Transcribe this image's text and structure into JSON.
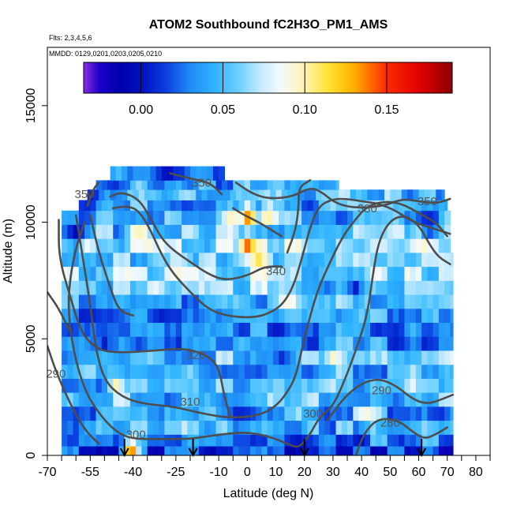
{
  "chart_data": {
    "type": "heatmap",
    "title": "ATOM2 Southbound fC2H3O_PM1_AMS",
    "subtitle_flights": "Flts: 2,3,4,5,6",
    "subtitle_dates": "MMDD: 0129,0201,0203,0205,0210",
    "xlabel": "Latitude (deg N)",
    "ylabel": "Altitude (m)",
    "xlim": [
      -70,
      85
    ],
    "ylim": [
      0,
      17500
    ],
    "x_ticks": [
      -70,
      -55,
      -40,
      -25,
      -10,
      0,
      10,
      20,
      30,
      40,
      50,
      60,
      70,
      80
    ],
    "x_minor_ticks": [
      -65,
      -60,
      -50,
      -45,
      -35,
      -30,
      -20,
      -15,
      -5,
      5,
      15,
      25,
      35,
      45,
      55,
      65,
      75,
      85
    ],
    "y_ticks": [
      0,
      5000,
      10000,
      15000
    ],
    "colorbar": {
      "min": -0.035,
      "max": 0.19,
      "ticks": [
        0.0,
        0.05,
        0.1,
        0.15
      ],
      "tick_labels": [
        "0.00",
        "0.05",
        "0.10",
        "0.15"
      ],
      "stops": [
        {
          "v": -0.035,
          "c": "#8a2be2"
        },
        {
          "v": -0.025,
          "c": "#1a00c8"
        },
        {
          "v": -0.012,
          "c": "#0000aa"
        },
        {
          "v": 0.0,
          "c": "#0010c0"
        },
        {
          "v": 0.015,
          "c": "#0a3ee0"
        },
        {
          "v": 0.03,
          "c": "#1f8cf5"
        },
        {
          "v": 0.045,
          "c": "#2fb4ff"
        },
        {
          "v": 0.06,
          "c": "#6fd0ff"
        },
        {
          "v": 0.072,
          "c": "#bfe8ff"
        },
        {
          "v": 0.085,
          "c": "#f4faff"
        },
        {
          "v": 0.1,
          "c": "#fff4b0"
        },
        {
          "v": 0.115,
          "c": "#ffe030"
        },
        {
          "v": 0.13,
          "c": "#ffb000"
        },
        {
          "v": 0.15,
          "c": "#ff2a00"
        },
        {
          "v": 0.17,
          "c": "#e00000"
        },
        {
          "v": 0.19,
          "c": "#8b0000"
        }
      ]
    },
    "contour_labels": [
      {
        "text": "350",
        "lat": -16,
        "alt": 11700
      },
      {
        "text": "350",
        "lat": -57,
        "alt": 11200
      },
      {
        "text": "350",
        "lat": 63,
        "alt": 10900
      },
      {
        "text": "330",
        "lat": 42,
        "alt": 10600
      },
      {
        "text": "340",
        "lat": 10,
        "alt": 7900
      },
      {
        "text": "320",
        "lat": -18,
        "alt": 4300
      },
      {
        "text": "310",
        "lat": -20,
        "alt": 2300
      },
      {
        "text": "300",
        "lat": -39,
        "alt": 900
      },
      {
        "text": "300",
        "lat": 23,
        "alt": 1800
      },
      {
        "text": "290",
        "lat": -67,
        "alt": 3500
      },
      {
        "text": "290",
        "lat": 47,
        "alt": 2800
      },
      {
        "text": "280",
        "lat": 50,
        "alt": 1400
      }
    ],
    "flight_markers_lat": [
      -43,
      -19,
      20,
      61
    ],
    "contour_lines": [
      {
        "level": 290,
        "points": [
          [
            -70,
            4700
          ],
          [
            -67,
            3600
          ],
          [
            -62,
            2200
          ],
          [
            -57,
            1100
          ],
          [
            -52,
            500
          ]
        ]
      },
      {
        "level": 290,
        "points": [
          [
            28,
            1500
          ],
          [
            34,
            2500
          ],
          [
            40,
            3100
          ],
          [
            46,
            3300
          ],
          [
            52,
            3000
          ],
          [
            58,
            2400
          ],
          [
            63,
            2200
          ],
          [
            68,
            2400
          ],
          [
            72,
            2600
          ]
        ]
      },
      {
        "level": 280,
        "points": [
          [
            38,
            0
          ],
          [
            41,
            1000
          ],
          [
            46,
            1600
          ],
          [
            53,
            1500
          ],
          [
            58,
            1000
          ],
          [
            62,
            700
          ],
          [
            66,
            900
          ],
          [
            70,
            1200
          ]
        ]
      },
      {
        "level": 300,
        "points": [
          [
            -57,
            10000
          ],
          [
            -61,
            8500
          ],
          [
            -63,
            6500
          ],
          [
            -61,
            4500
          ],
          [
            -57,
            2800
          ],
          [
            -52,
            1800
          ],
          [
            -46,
            1000
          ],
          [
            -40,
            700
          ],
          [
            -30,
            700
          ],
          [
            -20,
            700
          ],
          [
            -10,
            900
          ],
          [
            0,
            1000
          ],
          [
            8,
            800
          ],
          [
            14,
            500
          ],
          [
            18,
            300
          ],
          [
            22,
            900
          ],
          [
            25,
            1600
          ],
          [
            30,
            2100
          ],
          [
            34,
            3200
          ],
          [
            38,
            4500
          ],
          [
            42,
            6000
          ],
          [
            44,
            7800
          ],
          [
            46,
            9200
          ],
          [
            50,
            10100
          ],
          [
            55,
            10300
          ],
          [
            60,
            9900
          ],
          [
            64,
            9000
          ],
          [
            67,
            8500
          ],
          [
            71,
            8200
          ]
        ]
      },
      {
        "level": 310,
        "points": [
          [
            -60,
            10300
          ],
          [
            -58,
            8800
          ],
          [
            -55,
            6500
          ],
          [
            -53,
            4500
          ],
          [
            -50,
            3200
          ],
          [
            -44,
            2500
          ],
          [
            -36,
            2200
          ],
          [
            -26,
            2100
          ],
          [
            -16,
            1800
          ],
          [
            -6,
            1600
          ],
          [
            4,
            1700
          ],
          [
            10,
            2100
          ],
          [
            14,
            2700
          ],
          [
            17,
            3400
          ],
          [
            19,
            4500
          ],
          [
            22,
            6000
          ],
          [
            25,
            7200
          ],
          [
            29,
            8300
          ],
          [
            33,
            9300
          ],
          [
            37,
            10000
          ],
          [
            42,
            10700
          ],
          [
            48,
            10900
          ],
          [
            54,
            10800
          ],
          [
            60,
            10400
          ],
          [
            66,
            10000
          ],
          [
            70,
            9400
          ]
        ]
      },
      {
        "level": 320,
        "points": [
          [
            -66,
            10100
          ],
          [
            -66,
            8500
          ],
          [
            -62,
            6800
          ],
          [
            -58,
            5200
          ],
          [
            -52,
            4500
          ],
          [
            -44,
            4400
          ],
          [
            -32,
            4500
          ],
          [
            -22,
            4600
          ],
          [
            -14,
            4300
          ],
          [
            -10,
            3800
          ],
          [
            -8,
            2500
          ],
          [
            -6,
            1700
          ]
        ]
      },
      {
        "level": 320,
        "points": [
          [
            -55,
            10300
          ],
          [
            -52,
            8700
          ],
          [
            -48,
            7200
          ],
          [
            -45,
            6200
          ],
          [
            -40,
            6000
          ]
        ]
      },
      {
        "level": 330,
        "points": [
          [
            -70,
            7000
          ],
          [
            -66,
            6300
          ],
          [
            -62,
            5300
          ]
        ]
      },
      {
        "level": 330,
        "points": [
          [
            -47,
            10600
          ],
          [
            -42,
            10700
          ],
          [
            -38,
            10500
          ],
          [
            -34,
            9700
          ],
          [
            -30,
            8600
          ],
          [
            -26,
            7800
          ],
          [
            -20,
            7000
          ],
          [
            -14,
            6300
          ],
          [
            -8,
            6000
          ],
          [
            0,
            5900
          ],
          [
            6,
            6000
          ],
          [
            12,
            6400
          ],
          [
            16,
            7200
          ],
          [
            19,
            8400
          ],
          [
            22,
            9800
          ],
          [
            25,
            10700
          ],
          [
            30,
            11000
          ],
          [
            35,
            11000
          ],
          [
            40,
            10900
          ],
          [
            46,
            10800
          ],
          [
            52,
            10500
          ],
          [
            58,
            10000
          ],
          [
            66,
            9700
          ],
          [
            71,
            9500
          ]
        ]
      },
      {
        "level": 340,
        "points": [
          [
            -48,
            11100
          ],
          [
            -44,
            11300
          ],
          [
            -38,
            11000
          ],
          [
            -34,
            10200
          ],
          [
            -30,
            9300
          ],
          [
            -26,
            8800
          ],
          [
            -20,
            8300
          ],
          [
            -14,
            7800
          ],
          [
            -8,
            7500
          ],
          [
            0,
            7700
          ],
          [
            6,
            8100
          ],
          [
            12,
            8100
          ]
        ]
      },
      {
        "level": 340,
        "points": [
          [
            14,
            8700
          ],
          [
            17,
            9700
          ],
          [
            18,
            10700
          ],
          [
            18,
            11500
          ],
          [
            22,
            11800
          ]
        ]
      },
      {
        "level": 340,
        "points": [
          [
            -5,
            10600
          ],
          [
            -1,
            10300
          ],
          [
            4,
            10000
          ],
          [
            8,
            9700
          ],
          [
            12,
            9400
          ]
        ]
      },
      {
        "level": 350,
        "points": [
          [
            -56,
            10700
          ],
          [
            -54,
            11400
          ],
          [
            -52,
            11700
          ]
        ]
      },
      {
        "level": 350,
        "points": [
          [
            -27,
            12100
          ],
          [
            -21,
            11900
          ],
          [
            -13,
            11700
          ],
          [
            -9,
            11200
          ]
        ]
      },
      {
        "level": 350,
        "points": [
          [
            -4,
            11700
          ],
          [
            2,
            11200
          ],
          [
            8,
            11000
          ],
          [
            16,
            11100
          ],
          [
            22,
            11500
          ],
          [
            26,
            11300
          ],
          [
            31,
            10800
          ],
          [
            38,
            10600
          ],
          [
            48,
            10700
          ],
          [
            54,
            11000
          ],
          [
            60,
            10900
          ],
          [
            66,
            10800
          ],
          [
            71,
            11000
          ]
        ]
      }
    ],
    "rows": [
      {
        "alt0": 0,
        "alt1": 400,
        "lat0": -65,
        "lat1": 72,
        "base": 0.012
      },
      {
        "alt0": 400,
        "alt1": 900,
        "lat0": -65,
        "lat1": 72,
        "base": 0.03
      },
      {
        "alt0": 900,
        "alt1": 1500,
        "lat0": -65,
        "lat1": 72,
        "base": 0.045
      },
      {
        "alt0": 1500,
        "alt1": 2100,
        "lat0": -65,
        "lat1": 72,
        "base": 0.04
      },
      {
        "alt0": 2100,
        "alt1": 2700,
        "lat0": -65,
        "lat1": 72,
        "base": 0.05
      },
      {
        "alt0": 2700,
        "alt1": 3300,
        "lat0": -65,
        "lat1": 72,
        "base": 0.045
      },
      {
        "alt0": 3300,
        "alt1": 3900,
        "lat0": -65,
        "lat1": 72,
        "base": 0.04
      },
      {
        "alt0": 3900,
        "alt1": 4500,
        "lat0": -65,
        "lat1": 72,
        "base": 0.05
      },
      {
        "alt0": 4500,
        "alt1": 5100,
        "lat0": -65,
        "lat1": 72,
        "base": 0.035
      },
      {
        "alt0": 5100,
        "alt1": 5700,
        "lat0": -65,
        "lat1": 72,
        "base": 0.03
      },
      {
        "alt0": 5700,
        "alt1": 6300,
        "lat0": -65,
        "lat1": 72,
        "base": 0.035
      },
      {
        "alt0": 6300,
        "alt1": 6900,
        "lat0": -65,
        "lat1": 72,
        "base": 0.045
      },
      {
        "alt0": 6900,
        "alt1": 7500,
        "lat0": -65,
        "lat1": 72,
        "base": 0.055
      },
      {
        "alt0": 7500,
        "alt1": 8100,
        "lat0": -65,
        "lat1": 72,
        "base": 0.06
      },
      {
        "alt0": 8100,
        "alt1": 8700,
        "lat0": -65,
        "lat1": 72,
        "base": 0.055
      },
      {
        "alt0": 8700,
        "alt1": 9300,
        "lat0": -65,
        "lat1": 71,
        "base": 0.065
      },
      {
        "alt0": 9300,
        "alt1": 9900,
        "lat0": -65,
        "lat1": 71,
        "base": 0.05
      },
      {
        "alt0": 9900,
        "alt1": 10500,
        "lat0": -65,
        "lat1": 71,
        "base": 0.045
      },
      {
        "alt0": 10500,
        "alt1": 10950,
        "lat0": -59,
        "lat1": 70,
        "base": 0.04
      },
      {
        "alt0": 10950,
        "alt1": 11400,
        "lat0": -56,
        "lat1": 69,
        "base": 0.045
      },
      {
        "alt0": 11400,
        "alt1": 11800,
        "lat0": -53,
        "lat1": 32,
        "base": 0.04
      },
      {
        "alt0": 11800,
        "alt1": 12400,
        "lat0": -48,
        "lat1": -8,
        "base": 0.035
      }
    ],
    "hotspots": [
      {
        "lat": -41,
        "alt": 200,
        "v": 0.16,
        "w": 3
      },
      {
        "lat": 0,
        "alt": 10300,
        "v": 0.15,
        "w": 3
      },
      {
        "lat": 0,
        "alt": 9000,
        "v": 0.14,
        "w": 3
      },
      {
        "lat": 4,
        "alt": 8300,
        "v": 0.12,
        "w": 4
      },
      {
        "lat": -5,
        "alt": 10100,
        "v": 0.11,
        "w": 4
      },
      {
        "lat": 7,
        "alt": 10300,
        "v": 0.11,
        "w": 3
      },
      {
        "lat": -46,
        "alt": 3000,
        "v": 0.1,
        "w": 3
      },
      {
        "lat": -38,
        "alt": 9500,
        "v": 0.1,
        "w": 4
      },
      {
        "lat": 60,
        "alt": 9200,
        "v": 0.1,
        "w": 4
      },
      {
        "lat": 58,
        "alt": 3200,
        "v": 0.1,
        "w": 3
      },
      {
        "lat": 14,
        "alt": 6800,
        "v": 0.1,
        "w": 4
      },
      {
        "lat": -24,
        "alt": 8100,
        "v": 0.1,
        "w": 5
      },
      {
        "lat": 30,
        "alt": 4200,
        "v": 0.095,
        "w": 4
      },
      {
        "lat": 42,
        "alt": 1700,
        "v": 0.095,
        "w": 4
      },
      {
        "lat": -56,
        "alt": 11000,
        "v": -0.01,
        "w": 5
      },
      {
        "lat": -28,
        "alt": 12100,
        "v": -0.005,
        "w": 6
      },
      {
        "lat": -60,
        "alt": 9600,
        "v": -0.005,
        "w": 4
      },
      {
        "lat": 64,
        "alt": 9900,
        "v": -0.005,
        "w": 4
      },
      {
        "lat": -30,
        "alt": 6000,
        "v": 0.005,
        "w": 5
      },
      {
        "lat": 52,
        "alt": 5200,
        "v": 0.0,
        "w": 4
      },
      {
        "lat": -3,
        "alt": 1800,
        "v": 0.005,
        "w": 6
      },
      {
        "lat": 12,
        "alt": 4200,
        "v": 0.01,
        "w": 5
      },
      {
        "lat": 18,
        "alt": 700,
        "v": 0.0,
        "w": 5
      },
      {
        "lat": -50,
        "alt": 4800,
        "v": 0.005,
        "w": 4
      },
      {
        "lat": 68,
        "alt": 1700,
        "v": 0.005,
        "w": 4
      },
      {
        "lat": 38,
        "alt": 7200,
        "v": 0.005,
        "w": 4
      }
    ]
  }
}
